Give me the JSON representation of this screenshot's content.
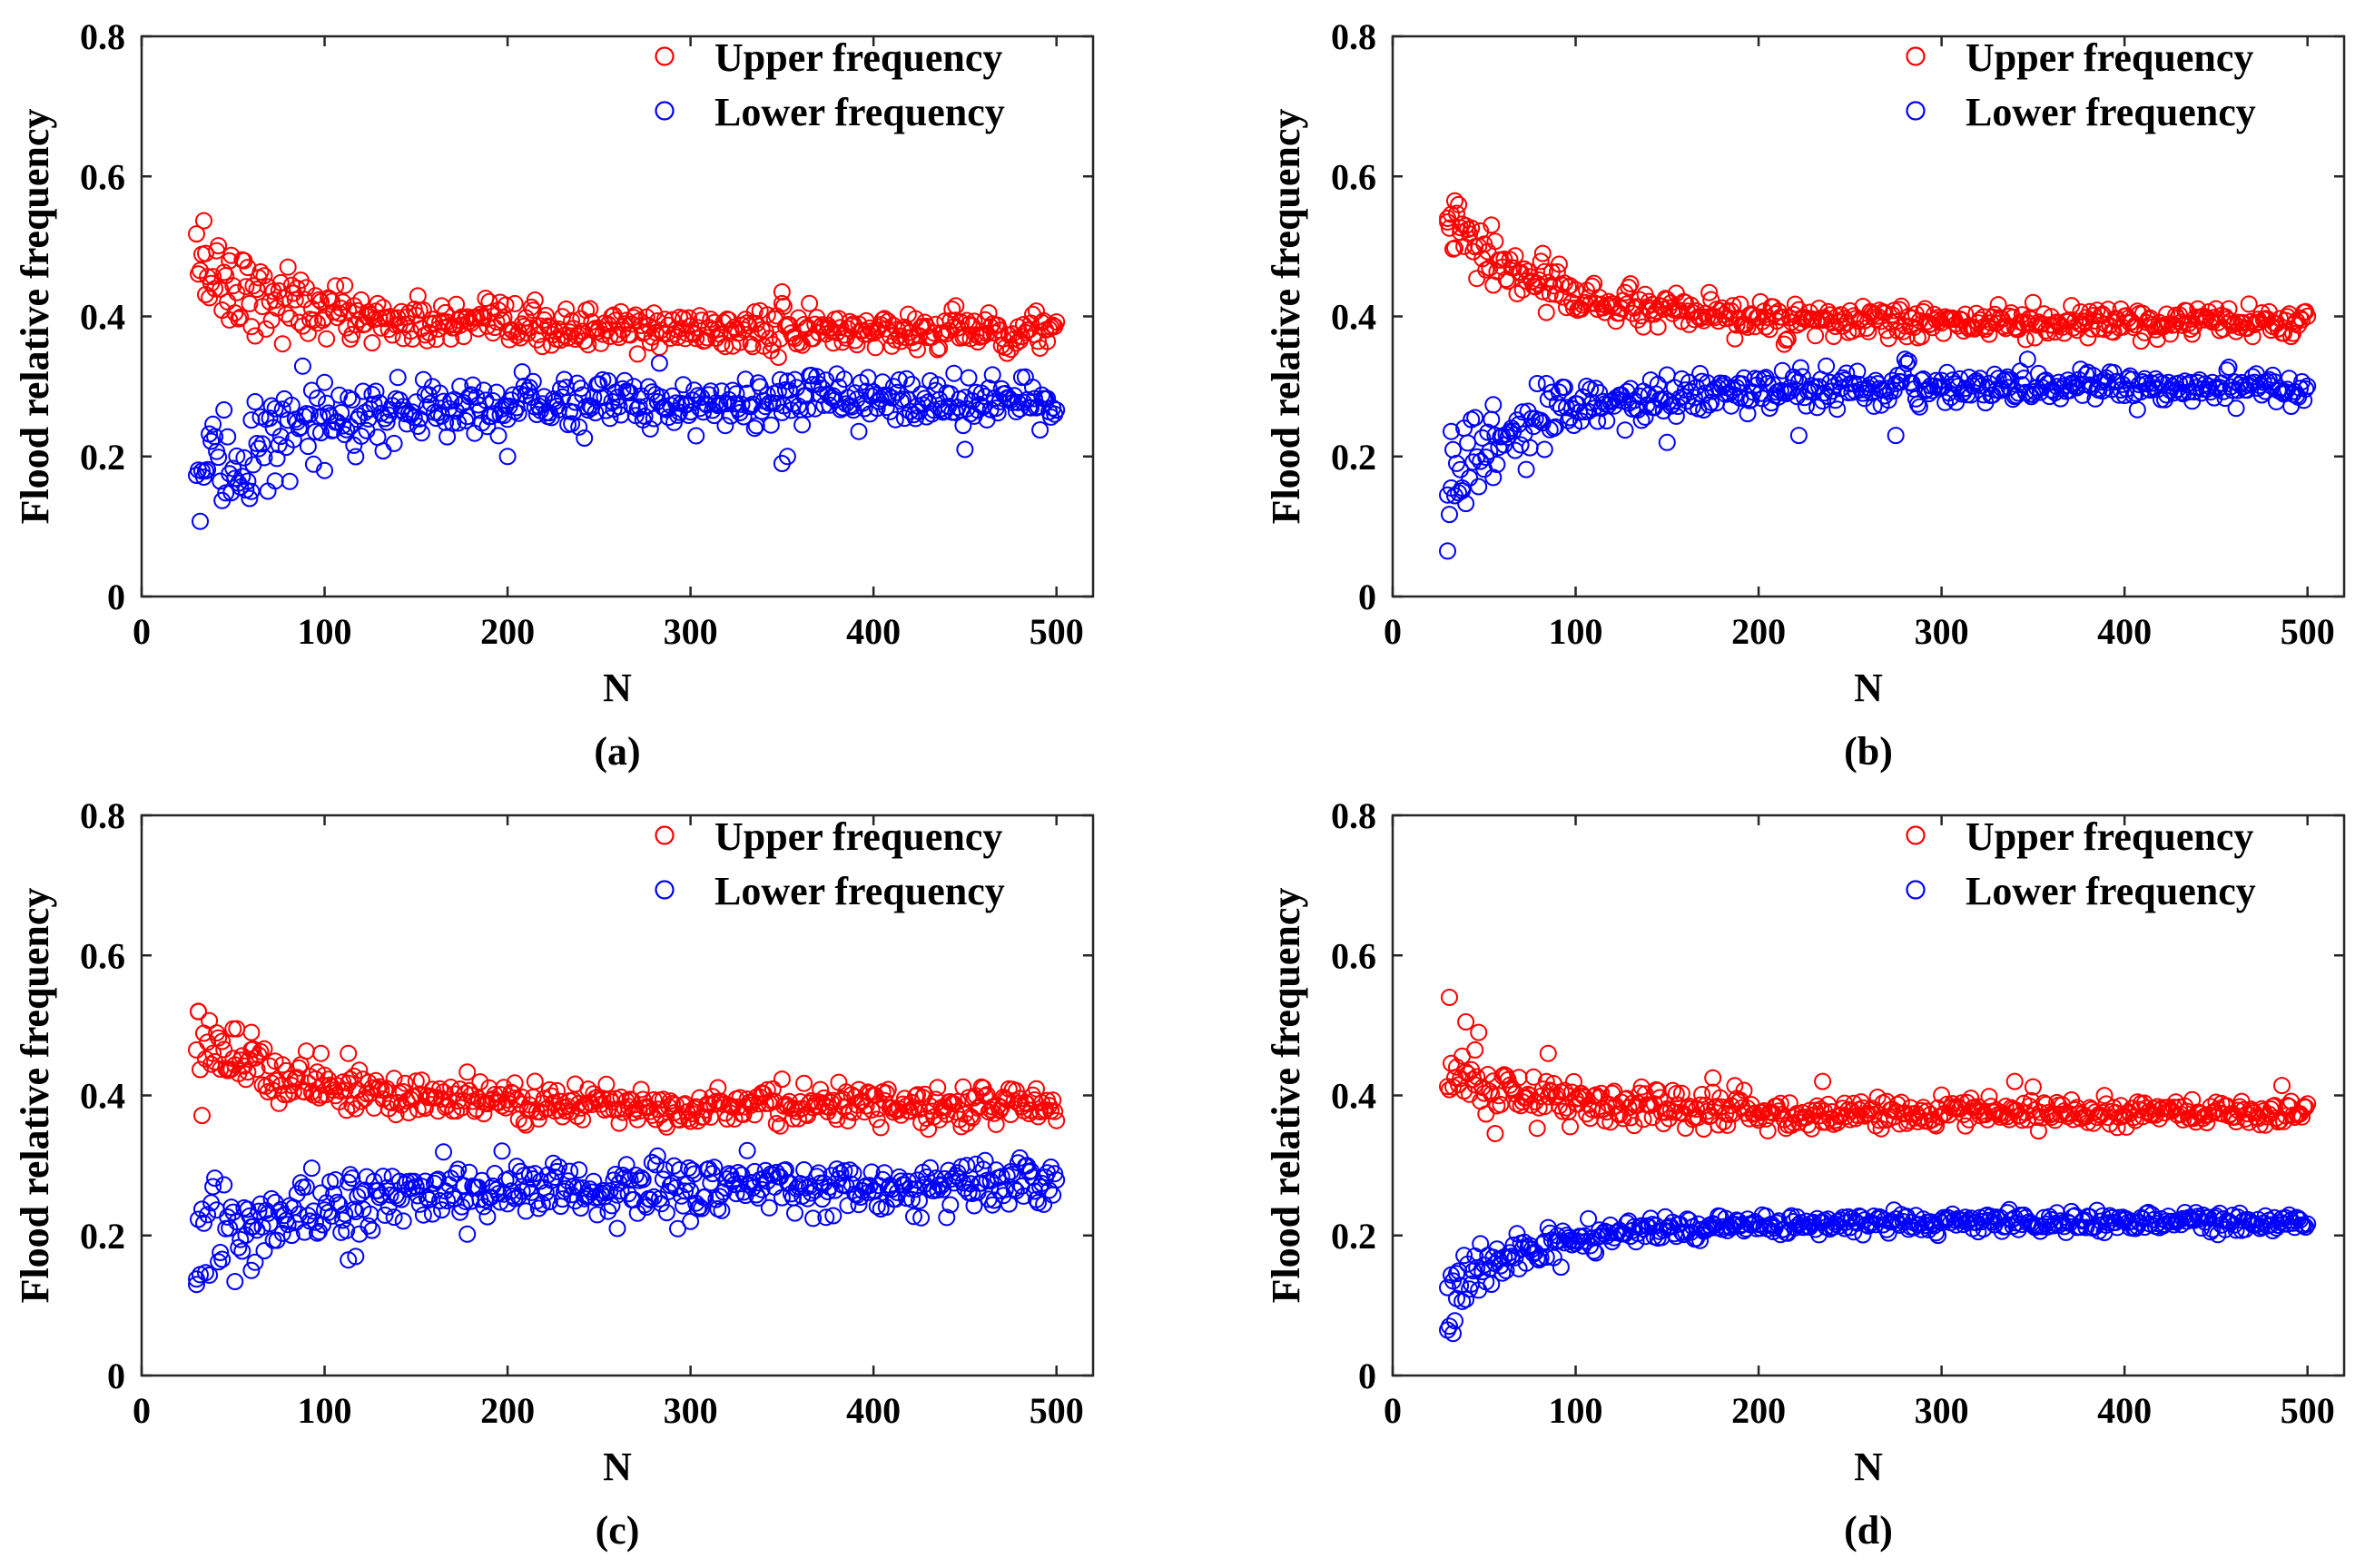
{
  "chart_data": [
    {
      "type": "scatter",
      "panel": "a",
      "caption": "(a)",
      "xlabel": "N",
      "ylabel": "Flood relative frequency",
      "xlim": [
        0,
        520
      ],
      "ylim": [
        0,
        0.8
      ],
      "xticks": [
        0,
        100,
        200,
        300,
        400,
        500
      ],
      "yticks": [
        0,
        0.2,
        0.4,
        0.6,
        0.8
      ],
      "x_range": [
        30,
        500
      ],
      "legend_position": "top-right",
      "series": [
        {
          "name": "Upper frequency",
          "color": "#ff0000",
          "marker": "open-circle",
          "start_value": 0.48,
          "end_value": 0.38,
          "noise": 0.014,
          "outliers": [
            [
              35,
              0.49
            ],
            [
              48,
              0.395
            ],
            [
              350,
              0.435
            ],
            [
              445,
              0.415
            ]
          ]
        },
        {
          "name": "Lower frequency",
          "color": "#0000ff",
          "marker": "open-circle",
          "start_value": 0.16,
          "end_value": 0.28,
          "noise": 0.018,
          "outliers": [
            [
              60,
              0.15
            ],
            [
              73,
              0.165
            ],
            [
              100,
              0.18
            ],
            [
              350,
              0.19
            ],
            [
              353,
              0.2
            ],
            [
              200,
              0.2
            ],
            [
              450,
              0.21
            ]
          ]
        }
      ]
    },
    {
      "type": "scatter",
      "panel": "b",
      "caption": "(b)",
      "xlabel": "N",
      "ylabel": "Flood relative frequency",
      "xlim": [
        0,
        520
      ],
      "ylim": [
        0,
        0.8
      ],
      "xticks": [
        0,
        100,
        200,
        300,
        400,
        500
      ],
      "yticks": [
        0,
        0.2,
        0.4,
        0.6,
        0.8
      ],
      "x_range": [
        30,
        500
      ],
      "legend_position": "top-right",
      "series": [
        {
          "name": "Upper frequency",
          "color": "#ff0000",
          "marker": "open-circle",
          "start_value": 0.53,
          "end_value": 0.39,
          "noise": 0.01,
          "outliers": [
            [
              30,
              0.54
            ],
            [
              34,
              0.565
            ],
            [
              37,
              0.52
            ],
            [
              82,
              0.49
            ]
          ]
        },
        {
          "name": "Lower frequency",
          "color": "#0000ff",
          "marker": "open-circle",
          "start_value": 0.17,
          "end_value": 0.3,
          "noise": 0.012,
          "outliers": [
            [
              30,
              0.065
            ],
            [
              32,
              0.155
            ],
            [
              38,
              0.155
            ],
            [
              55,
              0.17
            ],
            [
              150,
              0.22
            ],
            [
              222,
              0.23
            ],
            [
              275,
              0.23
            ]
          ]
        }
      ]
    },
    {
      "type": "scatter",
      "panel": "c",
      "caption": "(c)",
      "xlabel": "N",
      "ylabel": "Flood relative frequency",
      "xlim": [
        0,
        520
      ],
      "ylim": [
        0,
        0.8
      ],
      "xticks": [
        0,
        100,
        200,
        300,
        400,
        500
      ],
      "yticks": [
        0,
        0.2,
        0.4,
        0.6,
        0.8
      ],
      "x_range": [
        30,
        500
      ],
      "legend_position": "top-right",
      "series": [
        {
          "name": "Upper frequency",
          "color": "#ff0000",
          "marker": "open-circle",
          "start_value": 0.49,
          "end_value": 0.385,
          "noise": 0.012,
          "outliers": [
            [
              31,
              0.52
            ],
            [
              50,
              0.495
            ],
            [
              60,
              0.49
            ],
            [
              98,
              0.46
            ],
            [
              113,
              0.46
            ]
          ]
        },
        {
          "name": "Lower frequency",
          "color": "#0000ff",
          "marker": "open-circle",
          "start_value": 0.17,
          "end_value": 0.27,
          "noise": 0.018,
          "outliers": [
            [
              30,
              0.13
            ],
            [
              60,
              0.15
            ],
            [
              113,
              0.165
            ],
            [
              117,
              0.17
            ],
            [
              260,
              0.21
            ],
            [
              300,
              0.22
            ]
          ]
        }
      ]
    },
    {
      "type": "scatter",
      "panel": "d",
      "caption": "(d)",
      "xlabel": "N",
      "ylabel": "Flood relative frequency",
      "xlim": [
        0,
        520
      ],
      "ylim": [
        0,
        0.8
      ],
      "xticks": [
        0,
        100,
        200,
        300,
        400,
        500
      ],
      "yticks": [
        0,
        0.2,
        0.4,
        0.6,
        0.8
      ],
      "x_range": [
        30,
        500
      ],
      "legend_position": "top-right",
      "series": [
        {
          "name": "Upper frequency",
          "color": "#ff0000",
          "marker": "open-circle",
          "start_value": 0.43,
          "end_value": 0.375,
          "noise": 0.011,
          "outliers": [
            [
              31,
              0.54
            ],
            [
              40,
              0.505
            ],
            [
              45,
              0.465
            ],
            [
              85,
              0.46
            ],
            [
              175,
              0.425
            ],
            [
              340,
              0.42
            ],
            [
              235,
              0.42
            ]
          ]
        },
        {
          "name": "Lower frequency",
          "color": "#0000ff",
          "marker": "open-circle",
          "start_value": 0.12,
          "end_value": 0.22,
          "noise": 0.007,
          "outliers": [
            [
              30,
              0.065
            ],
            [
              33,
              0.06
            ],
            [
              35,
              0.11
            ]
          ]
        }
      ]
    }
  ]
}
